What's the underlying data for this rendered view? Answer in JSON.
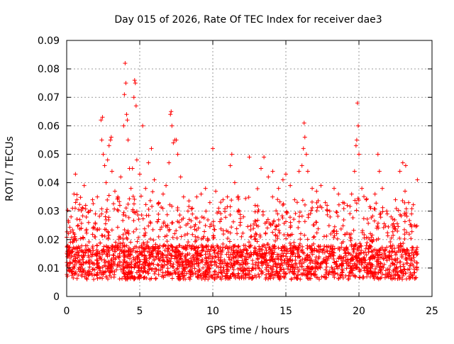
{
  "chart_data": {
    "type": "scatter",
    "title": "Day 015 of 2026, Rate Of TEC Index for receiver dae3",
    "xlabel": "GPS time / hours",
    "ylabel": "ROTI / TECUs",
    "xlim": [
      0,
      25
    ],
    "ylim": [
      0,
      0.09
    ],
    "x_ticks": [
      0,
      5,
      10,
      15,
      20,
      25
    ],
    "y_ticks": [
      0,
      0.01,
      0.02,
      0.03,
      0.04,
      0.05,
      0.06,
      0.07,
      0.08,
      0.09
    ],
    "x_tick_labels": [
      "0",
      "5",
      "10",
      "15",
      "20",
      "25"
    ],
    "y_tick_labels": [
      "0",
      "0.01",
      "0.02",
      "0.03",
      "0.04",
      "0.05",
      "0.06",
      "0.07",
      "0.08",
      "0.09"
    ],
    "grid": true,
    "marker": "+",
    "color": "#ff0000",
    "series": [
      {
        "name": "ROTI",
        "points": [
          [
            0.15,
            0.017
          ],
          [
            0.3,
            0.028
          ],
          [
            0.4,
            0.031
          ],
          [
            0.5,
            0.036
          ],
          [
            0.6,
            0.043
          ],
          [
            0.7,
            0.034
          ],
          [
            0.9,
            0.027
          ],
          [
            1.2,
            0.039
          ],
          [
            1.5,
            0.026
          ],
          [
            1.8,
            0.024
          ],
          [
            2.1,
            0.035
          ],
          [
            2.35,
            0.062
          ],
          [
            2.4,
            0.055
          ],
          [
            2.45,
            0.063
          ],
          [
            2.5,
            0.05
          ],
          [
            2.6,
            0.046
          ],
          [
            2.7,
            0.04
          ],
          [
            2.8,
            0.048
          ],
          [
            2.9,
            0.053
          ],
          [
            3.0,
            0.055
          ],
          [
            3.05,
            0.056
          ],
          [
            3.1,
            0.044
          ],
          [
            3.3,
            0.037
          ],
          [
            3.5,
            0.035
          ],
          [
            3.7,
            0.042
          ],
          [
            3.9,
            0.06
          ],
          [
            3.95,
            0.071
          ],
          [
            4.0,
            0.082
          ],
          [
            4.05,
            0.075
          ],
          [
            4.1,
            0.064
          ],
          [
            4.15,
            0.062
          ],
          [
            4.2,
            0.055
          ],
          [
            4.3,
            0.045
          ],
          [
            4.4,
            0.038
          ],
          [
            4.5,
            0.045
          ],
          [
            4.6,
            0.07
          ],
          [
            4.65,
            0.076
          ],
          [
            4.7,
            0.075
          ],
          [
            4.75,
            0.067
          ],
          [
            4.8,
            0.048
          ],
          [
            5.0,
            0.043
          ],
          [
            5.2,
            0.06
          ],
          [
            5.4,
            0.038
          ],
          [
            5.6,
            0.047
          ],
          [
            5.8,
            0.052
          ],
          [
            6.0,
            0.041
          ],
          [
            6.3,
            0.033
          ],
          [
            6.6,
            0.036
          ],
          [
            6.8,
            0.039
          ],
          [
            7.0,
            0.047
          ],
          [
            7.1,
            0.064
          ],
          [
            7.15,
            0.065
          ],
          [
            7.2,
            0.06
          ],
          [
            7.3,
            0.054
          ],
          [
            7.4,
            0.055
          ],
          [
            7.5,
            0.055
          ],
          [
            7.6,
            0.05
          ],
          [
            7.8,
            0.042
          ],
          [
            8.0,
            0.035
          ],
          [
            8.3,
            0.03
          ],
          [
            8.6,
            0.031
          ],
          [
            8.9,
            0.035
          ],
          [
            9.2,
            0.036
          ],
          [
            9.5,
            0.038
          ],
          [
            9.8,
            0.033
          ],
          [
            10.0,
            0.052
          ],
          [
            10.2,
            0.037
          ],
          [
            10.4,
            0.031
          ],
          [
            10.7,
            0.034
          ],
          [
            11.0,
            0.035
          ],
          [
            11.2,
            0.046
          ],
          [
            11.3,
            0.05
          ],
          [
            11.5,
            0.04
          ],
          [
            11.8,
            0.03
          ],
          [
            12.1,
            0.028
          ],
          [
            12.5,
            0.049
          ],
          [
            12.9,
            0.032
          ],
          [
            13.3,
            0.045
          ],
          [
            13.5,
            0.049
          ],
          [
            13.8,
            0.042
          ],
          [
            14.1,
            0.044
          ],
          [
            14.5,
            0.038
          ],
          [
            14.8,
            0.041
          ],
          [
            15.0,
            0.043
          ],
          [
            15.3,
            0.039
          ],
          [
            15.6,
            0.034
          ],
          [
            15.9,
            0.044
          ],
          [
            16.1,
            0.046
          ],
          [
            16.2,
            0.052
          ],
          [
            16.25,
            0.061
          ],
          [
            16.3,
            0.056
          ],
          [
            16.4,
            0.05
          ],
          [
            16.5,
            0.044
          ],
          [
            16.8,
            0.038
          ],
          [
            17.1,
            0.037
          ],
          [
            17.4,
            0.039
          ],
          [
            17.7,
            0.033
          ],
          [
            18.0,
            0.03
          ],
          [
            18.3,
            0.038
          ],
          [
            18.6,
            0.036
          ],
          [
            18.9,
            0.033
          ],
          [
            19.2,
            0.032
          ],
          [
            19.5,
            0.036
          ],
          [
            19.7,
            0.044
          ],
          [
            19.8,
            0.053
          ],
          [
            19.85,
            0.055
          ],
          [
            19.9,
            0.068
          ],
          [
            19.95,
            0.06
          ],
          [
            20.0,
            0.05
          ],
          [
            20.2,
            0.038
          ],
          [
            20.5,
            0.034
          ],
          [
            20.8,
            0.031
          ],
          [
            21.1,
            0.036
          ],
          [
            21.3,
            0.05
          ],
          [
            21.4,
            0.044
          ],
          [
            21.6,
            0.038
          ],
          [
            21.9,
            0.03
          ],
          [
            22.2,
            0.028
          ],
          [
            22.5,
            0.034
          ],
          [
            22.8,
            0.044
          ],
          [
            23.0,
            0.047
          ],
          [
            23.2,
            0.046
          ],
          [
            23.4,
            0.033
          ],
          [
            23.6,
            0.029
          ],
          [
            23.8,
            0.025
          ],
          [
            24.0,
            0.041
          ]
        ]
      }
    ]
  }
}
